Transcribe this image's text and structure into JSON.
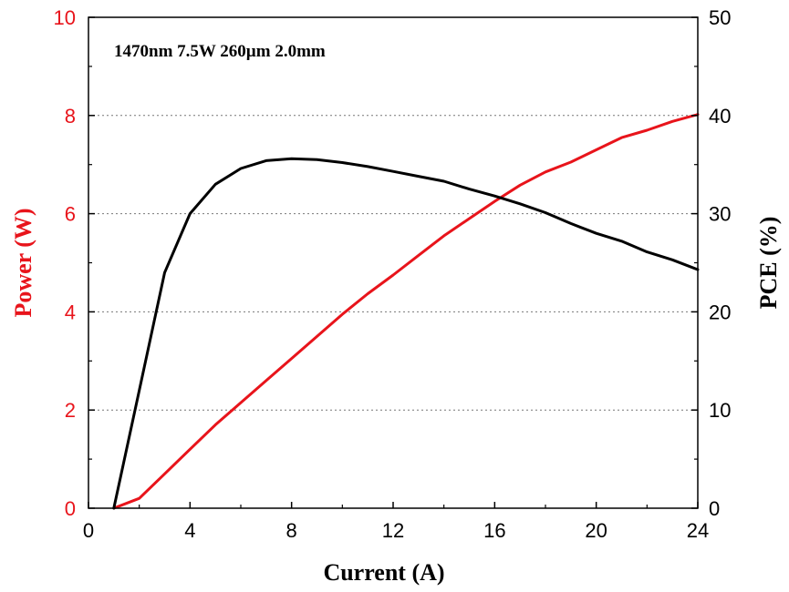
{
  "chart_data": {
    "type": "line",
    "annotation": "1470nm 7.5W 260µm 2.0mm",
    "xlabel": "Current (A)",
    "ylabel_left": "Power (W)",
    "ylabel_right": "PCE (%)",
    "xlim": [
      0,
      24
    ],
    "ylim_left": [
      0,
      10
    ],
    "ylim_right": [
      0,
      50
    ],
    "xticks": [
      "0",
      "4",
      "8",
      "12",
      "16",
      "20",
      "24"
    ],
    "yticks_left": [
      "0",
      "2",
      "4",
      "6",
      "8",
      "10"
    ],
    "yticks_right": [
      "0",
      "10",
      "20",
      "30",
      "40",
      "50"
    ],
    "grid": "horizontal dotted at major left ticks",
    "colors": {
      "power": "#e8141b",
      "pce": "#000000",
      "left_axis": "#e8141b",
      "right_axis": "#000000"
    },
    "series": [
      {
        "axis": "left",
        "color": "#e8141b",
        "points": [
          [
            1,
            0
          ],
          [
            2,
            0.2
          ],
          [
            3,
            0.7
          ],
          [
            4,
            1.2
          ],
          [
            5,
            1.7
          ],
          [
            6,
            2.15
          ],
          [
            7,
            2.6
          ],
          [
            8,
            3.05
          ],
          [
            9,
            3.5
          ],
          [
            10,
            3.95
          ],
          [
            11,
            4.37
          ],
          [
            12,
            4.75
          ],
          [
            13,
            5.15
          ],
          [
            14,
            5.55
          ],
          [
            15,
            5.9
          ],
          [
            16,
            6.25
          ],
          [
            17,
            6.58
          ],
          [
            18,
            6.85
          ],
          [
            19,
            7.05
          ],
          [
            20,
            7.3
          ],
          [
            21,
            7.55
          ],
          [
            22,
            7.7
          ],
          [
            23,
            7.88
          ],
          [
            24,
            8.02
          ]
        ]
      },
      {
        "axis": "right",
        "color": "#000000",
        "points": [
          [
            1,
            0
          ],
          [
            2,
            12
          ],
          [
            3,
            24
          ],
          [
            4,
            30
          ],
          [
            5,
            33
          ],
          [
            6,
            34.6
          ],
          [
            7,
            35.4
          ],
          [
            8,
            35.6
          ],
          [
            9,
            35.5
          ],
          [
            10,
            35.2
          ],
          [
            11,
            34.8
          ],
          [
            12,
            34.3
          ],
          [
            13,
            33.8
          ],
          [
            14,
            33.3
          ],
          [
            15,
            32.5
          ],
          [
            16,
            31.8
          ],
          [
            17,
            31
          ],
          [
            18,
            30.1
          ],
          [
            19,
            29
          ],
          [
            20,
            28
          ],
          [
            21,
            27.2
          ],
          [
            22,
            26.1
          ],
          [
            23,
            25.3
          ],
          [
            24,
            24.3
          ]
        ]
      }
    ]
  }
}
